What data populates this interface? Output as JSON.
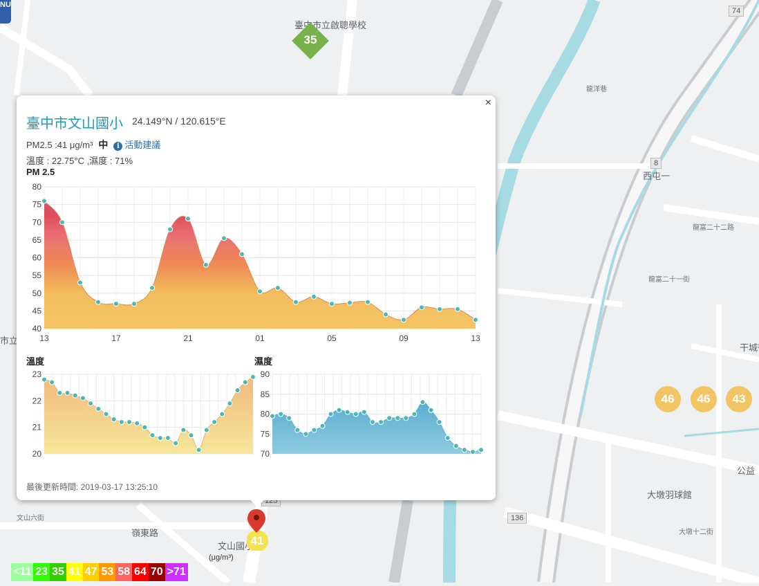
{
  "map": {
    "corner_badge": "NU",
    "labels": [
      {
        "text": "臺中市立啟聰學校",
        "cls": ""
      },
      {
        "text": "大墩羽球館",
        "cls": ""
      },
      {
        "text": "西屯一",
        "cls": ""
      },
      {
        "text": "公益",
        "cls": ""
      },
      {
        "text": "文山國小學",
        "cls": ""
      },
      {
        "text": "市立",
        "cls": ""
      },
      {
        "text": "龍洋巷",
        "cls": "sm"
      },
      {
        "text": "龍富二十二路",
        "cls": "sm"
      },
      {
        "text": "龍富二十一街",
        "cls": "sm"
      },
      {
        "text": "干城街",
        "cls": ""
      },
      {
        "text": "文山六街",
        "cls": "sm"
      },
      {
        "text": "嶺東路",
        "cls": ""
      },
      {
        "text": "大墩十二街",
        "cls": "sm"
      }
    ],
    "station_school_value": "35",
    "bubbles": [
      "46",
      "46",
      "43"
    ],
    "road_signs": [
      "8",
      "74",
      "125",
      "136"
    ],
    "current_marker_value": "41"
  },
  "popup": {
    "close_label": "×",
    "station_name": "臺中市文山國小",
    "coords": "24.149°N / 120.615°E",
    "pm25_reading": "PM2.5 :41 μg/m³",
    "level": "中",
    "info_icon": "i",
    "advice_link": "活動建議",
    "temp_humidity": "溫度 : 22.75°C ,濕度 : 71%",
    "pm_title": "PM 2.5",
    "temp_title": "溫度",
    "hum_title": "濕度",
    "updated": "最後更新時間: 2019-03-17 13:25:10"
  },
  "chart_data": [
    {
      "type": "area",
      "title": "PM 2.5",
      "x_ticks": [
        "13",
        "17",
        "21",
        "01",
        "05",
        "09",
        "13"
      ],
      "ylim": [
        40,
        80
      ],
      "y_ticks": [
        40,
        45,
        50,
        55,
        60,
        65,
        70,
        75,
        80
      ],
      "grid": true,
      "values": [
        76,
        70,
        53,
        47.5,
        47,
        47,
        51.5,
        68,
        71,
        58,
        65.5,
        61,
        50.5,
        51.5,
        47.5,
        49,
        47,
        47.3,
        47.5,
        44,
        42.5,
        46,
        45.5,
        45.5,
        42.5
      ]
    },
    {
      "type": "area",
      "title": "溫度",
      "ylim": [
        20,
        23
      ],
      "y_ticks": [
        20,
        21,
        22,
        23
      ],
      "grid": true,
      "values": [
        22.8,
        22.7,
        22.3,
        22.3,
        22.2,
        22.1,
        21.9,
        21.7,
        21.5,
        21.3,
        21.2,
        21.2,
        21.15,
        21.0,
        20.7,
        20.6,
        20.6,
        20.4,
        20.9,
        20.7,
        20.15,
        20.9,
        21.2,
        21.5,
        21.9,
        22.4,
        22.7,
        22.9
      ]
    },
    {
      "type": "area",
      "title": "濕度",
      "ylim": [
        70,
        90
      ],
      "y_ticks": [
        70,
        75,
        80,
        85,
        90
      ],
      "grid": true,
      "values": [
        79.5,
        80,
        79,
        76,
        75,
        76,
        77,
        80,
        81,
        80.5,
        80,
        80.5,
        78,
        78,
        79,
        79,
        79,
        80,
        83,
        81,
        78,
        74,
        72,
        71,
        70.5,
        71
      ]
    }
  ],
  "legend": {
    "unit": "(μg/m³)",
    "items": [
      {
        "label": "<11",
        "color": "#9cff9c"
      },
      {
        "label": "23",
        "color": "#31ff00"
      },
      {
        "label": "35",
        "color": "#31cf00"
      },
      {
        "label": "41",
        "color": "#ffff00"
      },
      {
        "label": "47",
        "color": "#ffcf00"
      },
      {
        "label": "53",
        "color": "#ff9a00"
      },
      {
        "label": "58",
        "color": "#ff6464"
      },
      {
        "label": "64",
        "color": "#ff0000"
      },
      {
        "label": "70",
        "color": "#990000"
      },
      {
        "label": ">71",
        "color": "#ce30ff"
      }
    ]
  }
}
